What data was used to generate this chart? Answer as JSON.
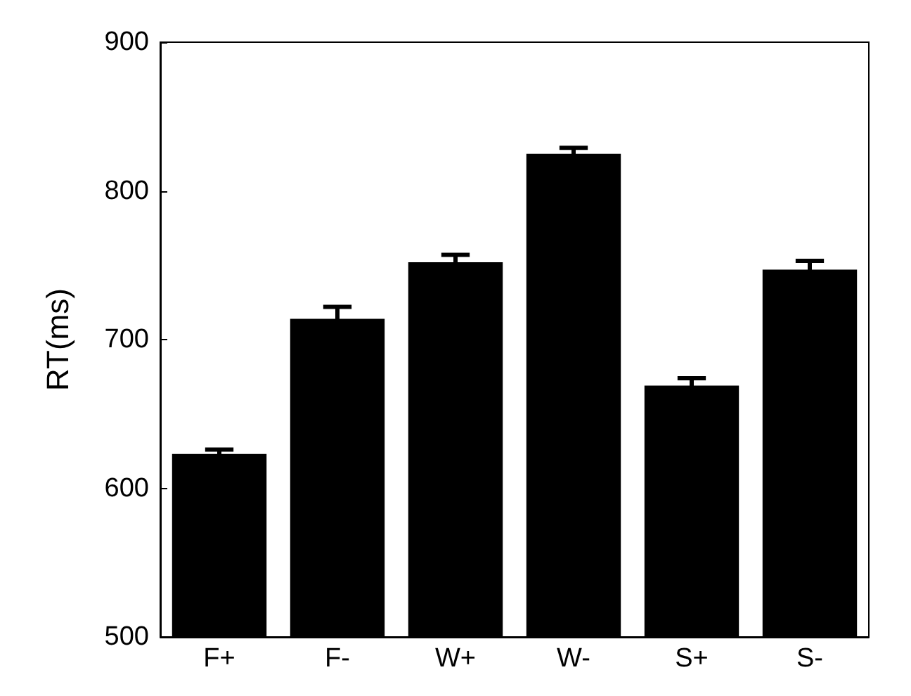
{
  "chart_data": {
    "type": "bar",
    "ylabel": "RT(ms)",
    "categories": [
      "F+",
      "F-",
      "W+",
      "W-",
      "S+",
      "S-"
    ],
    "values": [
      623,
      714,
      752,
      825,
      669,
      747
    ],
    "errors": [
      3,
      8,
      5,
      4,
      5,
      6
    ],
    "color": "#000000",
    "ylim": [
      500,
      900
    ],
    "yticks": [
      500,
      600,
      700,
      800,
      900
    ],
    "grid": false
  }
}
